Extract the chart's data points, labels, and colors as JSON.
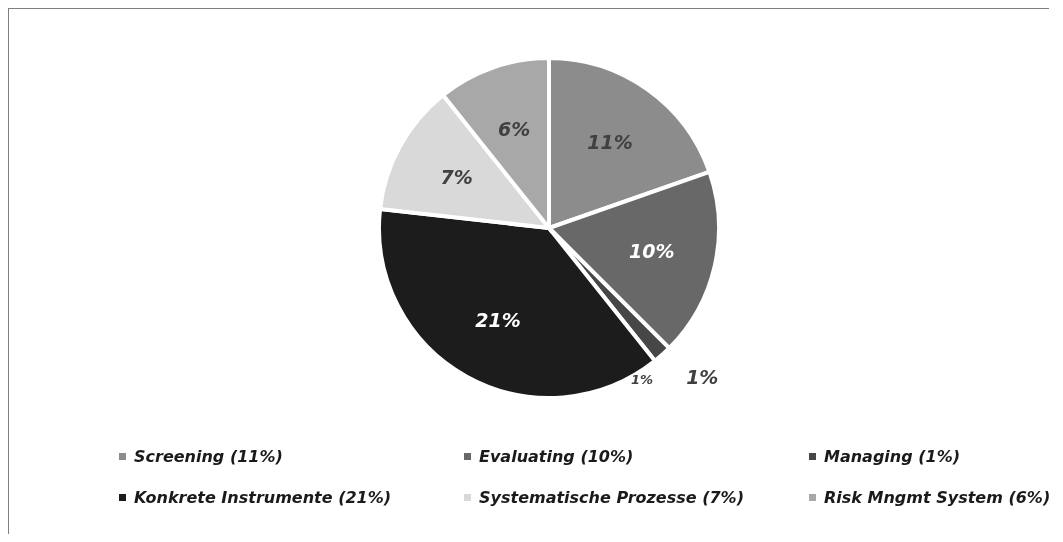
{
  "chart_data": {
    "type": "pie",
    "categories": [
      "Screening (11%)",
      "Evaluating (10%)",
      "Managing (1%)",
      "Konkrete Instrumente (21%)",
      "Systematische Prozesse (7%)",
      "Risk Mngmt System (6%)"
    ],
    "values": [
      11,
      10,
      1,
      21,
      7,
      6
    ],
    "colors": [
      "#8c8c8c",
      "#686868",
      "#474747",
      "#1c1c1c",
      "#d9d9d9",
      "#a8a8a8"
    ],
    "value_labels": [
      "11%",
      "10%",
      "1%",
      "21%",
      "7%",
      "6%"
    ],
    "annotations": [
      "1%"
    ],
    "legend": "bottom"
  }
}
